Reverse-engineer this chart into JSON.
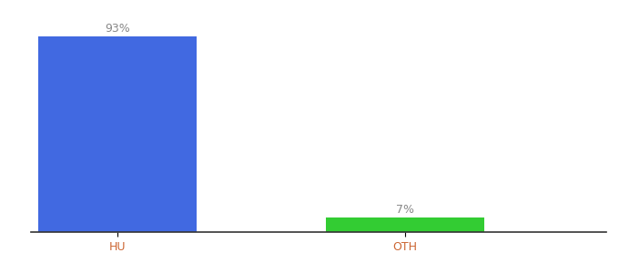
{
  "categories": [
    "HU",
    "OTH"
  ],
  "values": [
    93,
    7
  ],
  "bar_colors": [
    "#4169e1",
    "#33cc33"
  ],
  "ylim": [
    0,
    100
  ],
  "bar_labels": [
    "93%",
    "7%"
  ],
  "background_color": "#ffffff",
  "label_fontsize": 9,
  "tick_fontsize": 9,
  "tick_color": "#cc6633",
  "label_color": "#888888",
  "bar_width": 0.55,
  "xlim": [
    -0.3,
    1.7
  ]
}
